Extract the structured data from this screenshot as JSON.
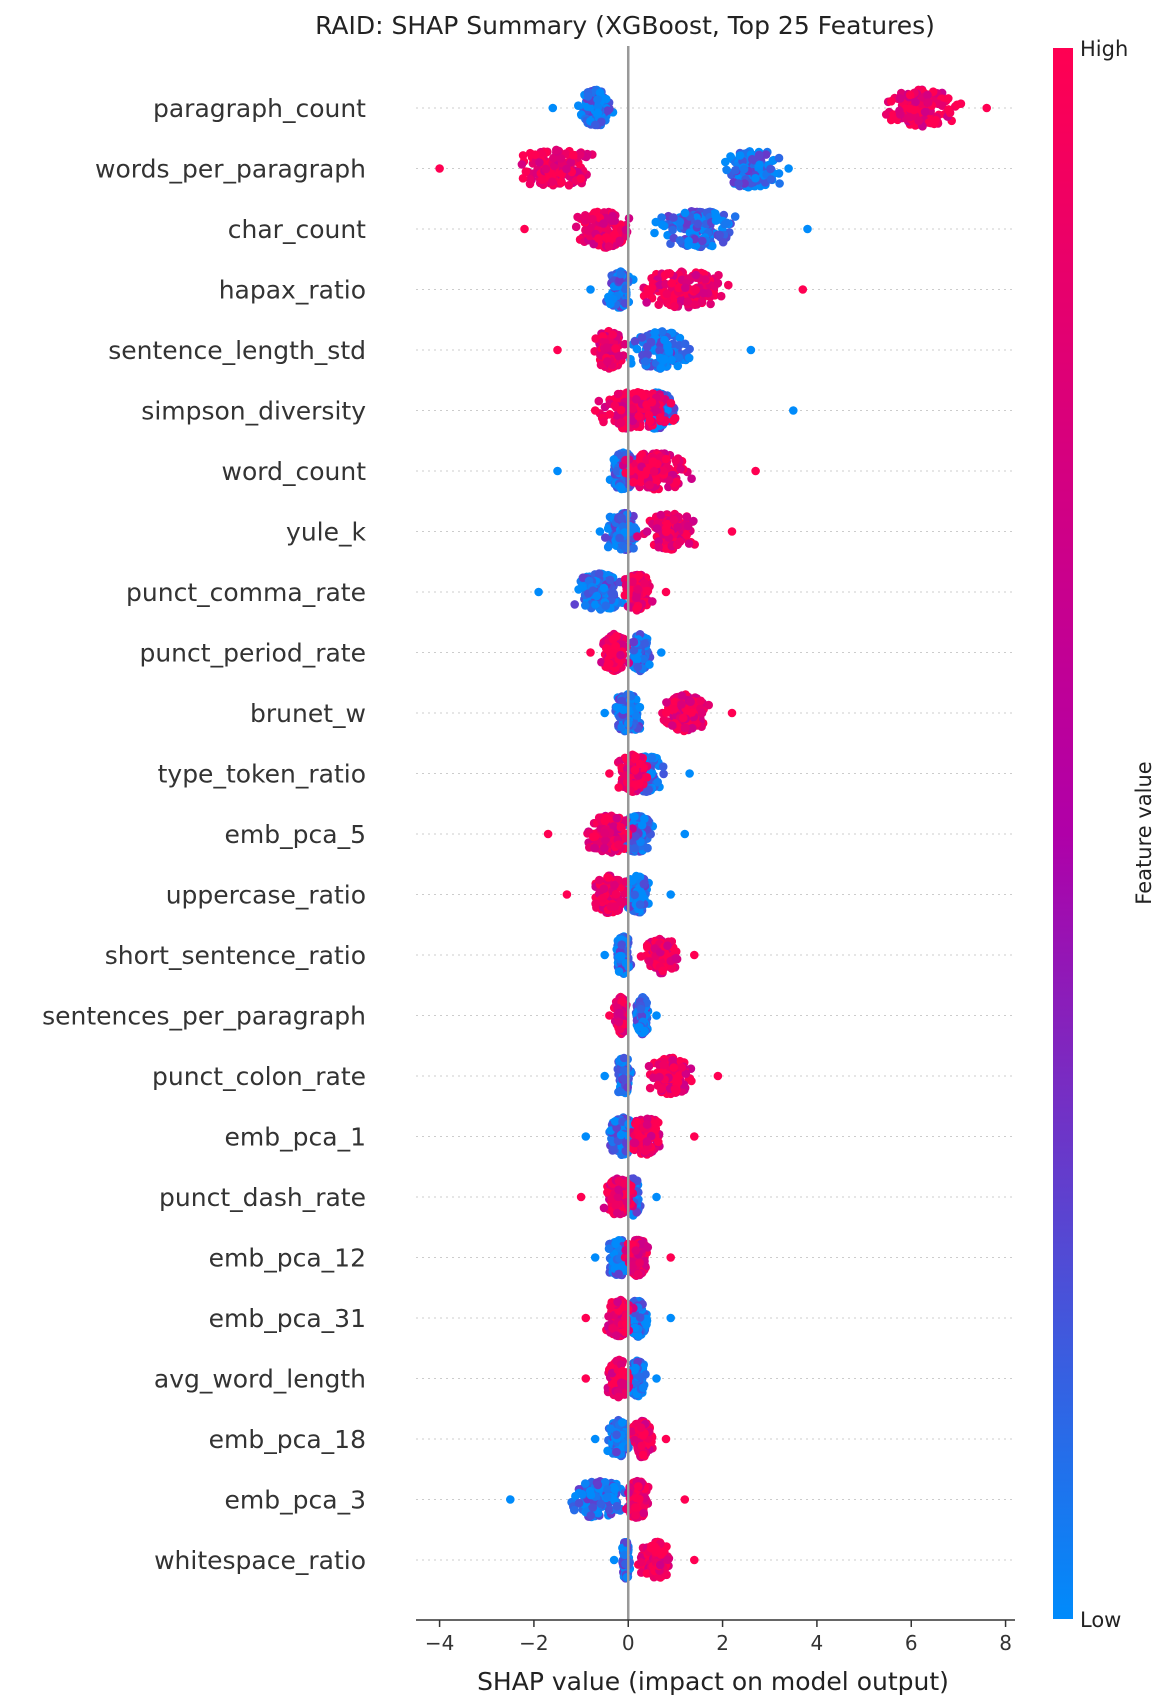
{
  "chart_data": {
    "type": "scatter",
    "title": "RAID: SHAP Summary (XGBoost, Top 25 Features)",
    "xlabel": "SHAP value (impact on model output)",
    "xlim": [
      -4.5,
      8.2
    ],
    "xticks": [
      -4,
      -2,
      0,
      2,
      4,
      6,
      8
    ],
    "xtick_labels": [
      "−4",
      "−2",
      "0",
      "2",
      "4",
      "6",
      "8"
    ],
    "colorbar": {
      "label": "Feature value",
      "high_label": "High",
      "low_label": "Low",
      "high_color": "#ff0052",
      "mid_color": "#b000a8",
      "low_color": "#008bfb"
    },
    "grid": false,
    "features": [
      {
        "name": "paragraph_count",
        "low": {
          "min": -1.6,
          "max": -0.3,
          "center": -0.7,
          "spread": 0.35
        },
        "high": {
          "min": 4.4,
          "max": 7.6,
          "center": 6.2,
          "spread": 0.9
        },
        "range": [
          -1.6,
          7.6
        ]
      },
      {
        "name": "words_per_paragraph",
        "low": {
          "min": 0.0,
          "max": 3.4,
          "center": 2.6,
          "spread": 0.6
        },
        "high": {
          "min": -4.0,
          "max": -0.5,
          "center": -1.5,
          "spread": 0.8
        },
        "range": [
          -4.0,
          3.4
        ]
      },
      {
        "name": "char_count",
        "low": {
          "min": 0.5,
          "max": 3.8,
          "center": 1.5,
          "spread": 0.9
        },
        "high": {
          "min": -2.2,
          "max": 1.5,
          "center": -0.5,
          "spread": 0.6
        },
        "range": [
          -2.2,
          3.8
        ]
      },
      {
        "name": "hapax_ratio",
        "low": {
          "min": -0.8,
          "max": 0.5,
          "center": -0.2,
          "spread": 0.25
        },
        "high": {
          "min": -0.2,
          "max": 3.7,
          "center": 1.2,
          "spread": 1.0
        },
        "range": [
          -0.8,
          3.7
        ]
      },
      {
        "name": "sentence_length_std",
        "low": {
          "min": -0.3,
          "max": 2.6,
          "center": 0.7,
          "spread": 0.7
        },
        "high": {
          "min": -1.5,
          "max": 0.3,
          "center": -0.4,
          "spread": 0.35
        },
        "range": [
          -1.5,
          2.6
        ]
      },
      {
        "name": "simpson_diversity",
        "low": {
          "min": 0.0,
          "max": 1.5,
          "center": 0.6,
          "spread": 0.4
        },
        "high": {
          "min": -0.7,
          "max": 3.5,
          "center": 0.2,
          "spread": 0.8
        },
        "range": [
          -0.7,
          3.5
        ]
      },
      {
        "name": "word_count",
        "low": {
          "min": -0.6,
          "max": 0.8,
          "center": -0.1,
          "spread": 0.3
        },
        "high": {
          "min": -1.5,
          "max": 2.7,
          "center": 0.6,
          "spread": 0.9
        },
        "range": [
          -1.5,
          2.7
        ]
      },
      {
        "name": "yule_k",
        "low": {
          "min": -0.6,
          "max": 1.5,
          "center": -0.1,
          "spread": 0.35
        },
        "high": {
          "min": 0.0,
          "max": 2.2,
          "center": 0.9,
          "spread": 0.6
        },
        "range": [
          -0.6,
          2.2
        ]
      },
      {
        "name": "punct_comma_rate",
        "low": {
          "min": -1.9,
          "max": 0.2,
          "center": -0.6,
          "spread": 0.55
        },
        "high": {
          "min": -0.6,
          "max": 0.8,
          "center": 0.2,
          "spread": 0.3
        },
        "range": [
          -1.9,
          0.8
        ]
      },
      {
        "name": "punct_period_rate",
        "low": {
          "min": -0.1,
          "max": 0.7,
          "center": 0.25,
          "spread": 0.2
        },
        "high": {
          "min": -0.8,
          "max": 0.3,
          "center": -0.3,
          "spread": 0.25
        },
        "range": [
          -0.8,
          0.7
        ]
      },
      {
        "name": "brunet_w",
        "low": {
          "min": -0.5,
          "max": 1.2,
          "center": 0.0,
          "spread": 0.3
        },
        "high": {
          "min": 0.3,
          "max": 2.2,
          "center": 1.2,
          "spread": 0.5
        },
        "range": [
          -0.5,
          2.2
        ]
      },
      {
        "name": "type_token_ratio",
        "low": {
          "min": -0.2,
          "max": 1.3,
          "center": 0.4,
          "spread": 0.35
        },
        "high": {
          "min": -0.4,
          "max": 1.0,
          "center": 0.1,
          "spread": 0.3
        },
        "range": [
          -0.4,
          1.3
        ]
      },
      {
        "name": "emb_pca_5",
        "low": {
          "min": -0.3,
          "max": 1.2,
          "center": 0.2,
          "spread": 0.3
        },
        "high": {
          "min": -1.7,
          "max": 0.5,
          "center": -0.4,
          "spread": 0.5
        },
        "range": [
          -1.7,
          1.2
        ]
      },
      {
        "name": "uppercase_ratio",
        "low": {
          "min": -0.2,
          "max": 0.9,
          "center": 0.2,
          "spread": 0.25
        },
        "high": {
          "min": -1.3,
          "max": 0.3,
          "center": -0.4,
          "spread": 0.35
        },
        "range": [
          -1.3,
          0.9
        ]
      },
      {
        "name": "short_sentence_ratio",
        "low": {
          "min": -0.5,
          "max": 0.5,
          "center": -0.1,
          "spread": 0.15
        },
        "high": {
          "min": 0.0,
          "max": 1.4,
          "center": 0.7,
          "spread": 0.4
        },
        "range": [
          -0.5,
          1.4
        ]
      },
      {
        "name": "sentences_per_paragraph",
        "low": {
          "min": 0.0,
          "max": 0.6,
          "center": 0.3,
          "spread": 0.15
        },
        "high": {
          "min": -0.4,
          "max": 0.2,
          "center": -0.15,
          "spread": 0.12
        },
        "range": [
          -0.4,
          0.6
        ]
      },
      {
        "name": "punct_colon_rate",
        "low": {
          "min": -0.5,
          "max": 0.5,
          "center": -0.1,
          "spread": 0.15
        },
        "high": {
          "min": 0.2,
          "max": 1.9,
          "center": 0.9,
          "spread": 0.5
        },
        "range": [
          -0.5,
          1.9
        ]
      },
      {
        "name": "emb_pca_1",
        "low": {
          "min": -0.9,
          "max": 0.8,
          "center": -0.1,
          "spread": 0.35
        },
        "high": {
          "min": -0.2,
          "max": 1.4,
          "center": 0.4,
          "spread": 0.35
        },
        "range": [
          -0.9,
          1.4
        ]
      },
      {
        "name": "punct_dash_rate",
        "low": {
          "min": -0.2,
          "max": 0.6,
          "center": 0.1,
          "spread": 0.15
        },
        "high": {
          "min": -1.0,
          "max": 0.5,
          "center": -0.2,
          "spread": 0.3
        },
        "range": [
          -1.0,
          0.6
        ]
      },
      {
        "name": "emb_pca_12",
        "low": {
          "min": -0.7,
          "max": 0.5,
          "center": -0.2,
          "spread": 0.25
        },
        "high": {
          "min": -0.2,
          "max": 0.9,
          "center": 0.2,
          "spread": 0.25
        },
        "range": [
          -0.7,
          0.9
        ]
      },
      {
        "name": "emb_pca_31",
        "low": {
          "min": -0.3,
          "max": 0.9,
          "center": 0.2,
          "spread": 0.25
        },
        "high": {
          "min": -0.9,
          "max": 0.3,
          "center": -0.2,
          "spread": 0.25
        },
        "range": [
          -0.9,
          0.9
        ]
      },
      {
        "name": "avg_word_length",
        "low": {
          "min": -0.1,
          "max": 0.6,
          "center": 0.2,
          "spread": 0.18
        },
        "high": {
          "min": -0.9,
          "max": 0.2,
          "center": -0.2,
          "spread": 0.25
        },
        "range": [
          -0.9,
          0.6
        ]
      },
      {
        "name": "emb_pca_18",
        "low": {
          "min": -0.7,
          "max": 0.4,
          "center": -0.2,
          "spread": 0.25
        },
        "high": {
          "min": -0.2,
          "max": 0.8,
          "center": 0.3,
          "spread": 0.22
        },
        "range": [
          -0.7,
          0.8
        ]
      },
      {
        "name": "emb_pca_3",
        "low": {
          "min": -2.5,
          "max": 0.3,
          "center": -0.6,
          "spread": 0.6
        },
        "high": {
          "min": -0.3,
          "max": 1.2,
          "center": 0.2,
          "spread": 0.25
        },
        "range": [
          -2.5,
          1.2
        ]
      },
      {
        "name": "whitespace_ratio",
        "low": {
          "min": -0.3,
          "max": 0.3,
          "center": -0.05,
          "spread": 0.1
        },
        "high": {
          "min": 0.0,
          "max": 1.4,
          "center": 0.6,
          "spread": 0.35
        },
        "range": [
          -0.3,
          1.4
        ]
      }
    ]
  }
}
